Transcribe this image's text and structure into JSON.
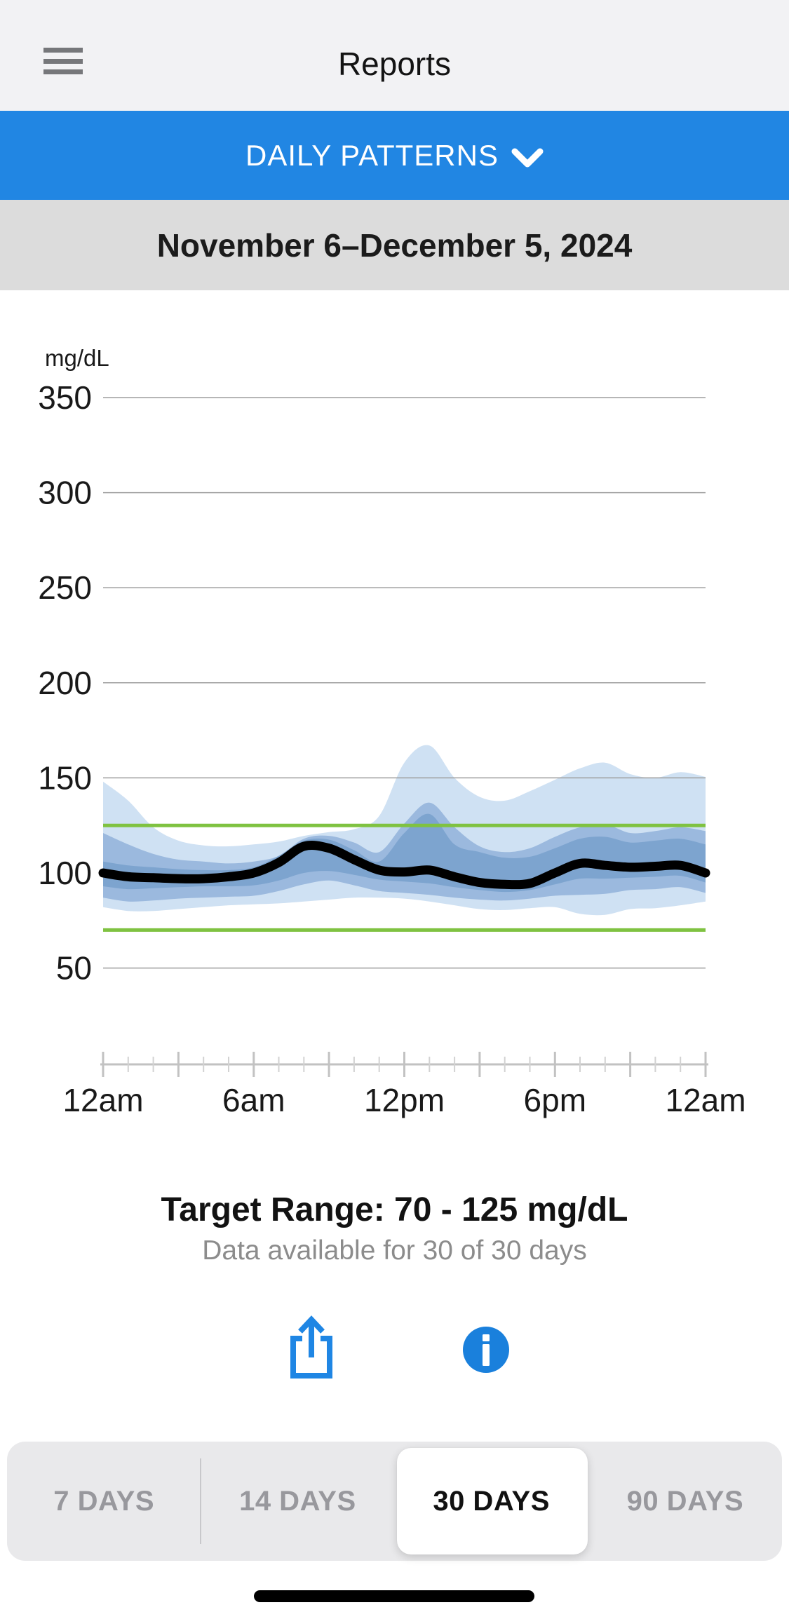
{
  "header": {
    "title": "Reports"
  },
  "pattern_bar": {
    "label": "DAILY PATTERNS"
  },
  "date_range": {
    "label": "November 6–December 5, 2024"
  },
  "summary": {
    "target_range_label": "Target Range: 70 - 125 mg/dL",
    "data_available_label": "Data available for 30 of 30 days"
  },
  "actions": {
    "share_icon": "share-export-icon",
    "info_icon": "info-circle-icon"
  },
  "range_tabs": {
    "options": [
      "7 DAYS",
      "14 DAYS",
      "30 DAYS",
      "90 DAYS"
    ],
    "selected": "30 DAYS"
  },
  "colors": {
    "accent_blue": "#2186e3",
    "header_bg": "#f2f2f4",
    "date_bar_bg": "#dcdcdc",
    "band_outer": "#cfe1f3",
    "band_middle": "#9bb9de",
    "band_inner": "#7da4cf",
    "median_line": "#000000",
    "target_line_green": "#7fc241",
    "grid_line": "#9e9e9e",
    "axis_line": "#c2c2c2",
    "tick_minor": "#d2d2d2",
    "label_dark": "#191919",
    "label_gray": "#8c8c8c",
    "icon_blue": "#1f86e4",
    "info_fill": "#1a80dc"
  },
  "chart_data": {
    "type": "area",
    "title": "Daily patterns ambulatory glucose profile",
    "unit_label": "mg/dL",
    "ylim": [
      0,
      350
    ],
    "y_ticks": [
      350,
      300,
      250,
      200,
      150,
      100,
      50
    ],
    "x_hours_range": [
      0,
      24
    ],
    "x_major_tick_every_hours": 3,
    "x_minor_tick_every_hours": 1,
    "x_labels": [
      {
        "hour": 0,
        "label": "12am"
      },
      {
        "hour": 6,
        "label": "6am"
      },
      {
        "hour": 12,
        "label": "12pm"
      },
      {
        "hour": 18,
        "label": "6pm"
      },
      {
        "hour": 24,
        "label": "12am"
      }
    ],
    "target_range": {
      "low": 70,
      "high": 125
    },
    "grid": true,
    "legend_position": "none",
    "hours": [
      0,
      1,
      2,
      3,
      4,
      5,
      6,
      7,
      8,
      9,
      10,
      11,
      12,
      13,
      14,
      15,
      16,
      17,
      18,
      19,
      20,
      21,
      22,
      23,
      24
    ],
    "series": {
      "p95": [
        148,
        138,
        124,
        117,
        114.5,
        114,
        115,
        116.5,
        119.5,
        121.5,
        123,
        130,
        158,
        167,
        150,
        140,
        138,
        143,
        149,
        155,
        158,
        152,
        150,
        153,
        150.5
      ],
      "p90": [
        121,
        115,
        110,
        107,
        106,
        105,
        106,
        109,
        118,
        119.5,
        116,
        111,
        126,
        137,
        124,
        114,
        111,
        113,
        119,
        124,
        125.5,
        121,
        122,
        124,
        122
      ],
      "p75": [
        106,
        104,
        103,
        102,
        101.5,
        101.5,
        103,
        109,
        117,
        117.5,
        112,
        106,
        121,
        131,
        115,
        111,
        108,
        108.5,
        113,
        118,
        119,
        116,
        117,
        118,
        115
      ],
      "median": [
        100,
        98,
        97.5,
        97,
        97,
        98,
        100,
        105.5,
        114,
        113,
        107,
        101.5,
        100.5,
        101.5,
        98,
        95,
        94,
        94.5,
        100,
        105,
        104,
        103,
        103.5,
        104,
        100
      ],
      "p25": [
        93,
        91.5,
        92,
        92.5,
        93,
        93,
        93.5,
        96,
        100,
        101,
        99,
        96.5,
        95.5,
        94.5,
        92.5,
        91,
        90,
        91,
        94,
        97,
        97,
        97.5,
        98,
        98.5,
        95
      ],
      "p10": [
        87,
        85,
        85.5,
        86.5,
        87,
        87.5,
        88,
        90.5,
        94,
        96,
        93.5,
        90.5,
        89.5,
        88.5,
        87,
        86,
        85.5,
        86.5,
        88,
        88.5,
        89,
        91,
        91.5,
        92.5,
        89.5
      ],
      "p5": [
        82,
        80,
        80,
        81,
        82,
        83,
        83.5,
        84,
        85,
        86,
        87,
        87,
        86.5,
        85,
        83,
        81,
        80.5,
        81.5,
        82,
        78.5,
        78,
        81,
        81.5,
        83,
        85
      ]
    }
  }
}
